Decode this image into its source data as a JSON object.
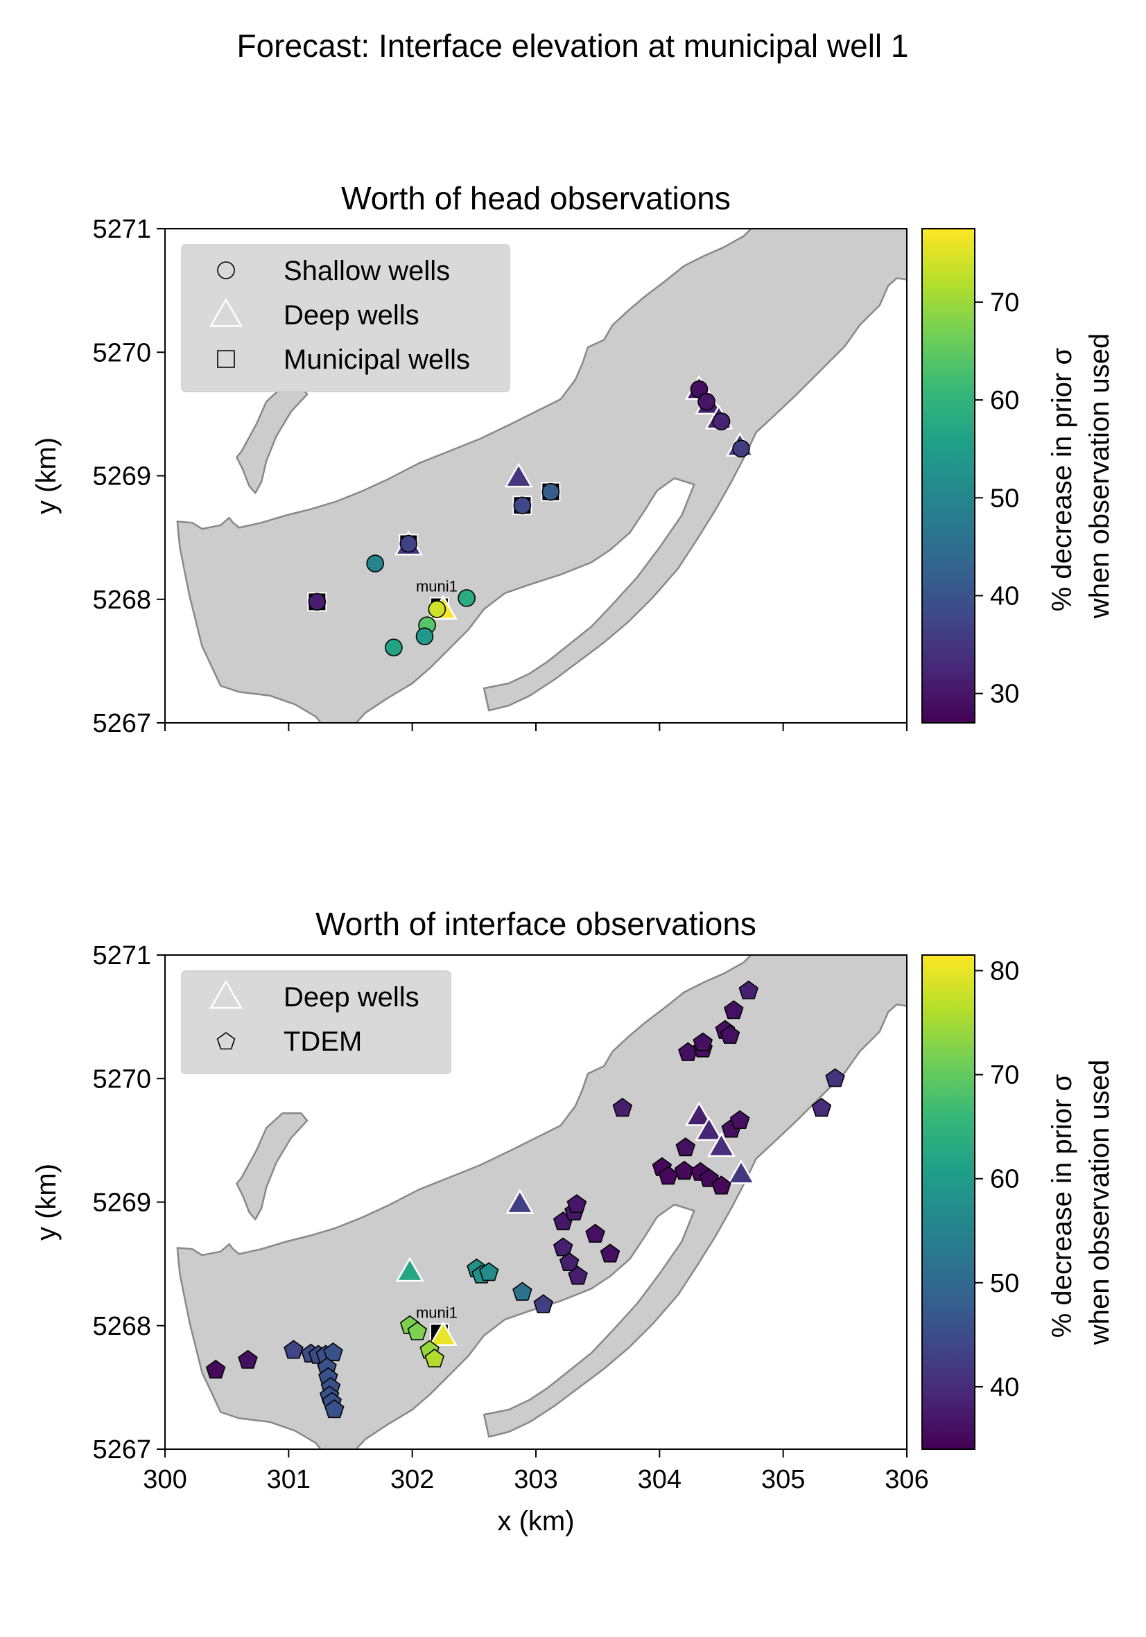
{
  "suptitle": "Forecast: Interface elevation at municipal well 1",
  "colors": {
    "island": "#cccccc",
    "coast": "#888888",
    "legend_bg": "#d9d9d9",
    "viridis": [
      "#440154",
      "#482878",
      "#3e4989",
      "#31688e",
      "#26828e",
      "#1f9e89",
      "#35b779",
      "#6ece58",
      "#b5de2b",
      "#fde725"
    ]
  },
  "chart_data": [
    {
      "type": "scatter",
      "title": "Worth of head observations",
      "xlabel": "",
      "ylabel": "y (km)",
      "xlim": [
        300,
        306
      ],
      "ylim": [
        5267,
        5271
      ],
      "xticks": [
        300,
        301,
        302,
        303,
        304,
        305,
        306
      ],
      "yticks": [
        5267,
        5268,
        5269,
        5270,
        5271
      ],
      "show_xticklabels": false,
      "colorbar": {
        "label_line1": "% decrease in prior σ",
        "label_line2": "when observation used",
        "range": [
          27,
          77.5
        ],
        "ticks": [
          30,
          40,
          50,
          60,
          70
        ]
      },
      "legend": {
        "position": "top-left",
        "entries": [
          {
            "marker": "circle",
            "label": "Shallow wells"
          },
          {
            "marker": "triangle",
            "label": "Deep wells"
          },
          {
            "marker": "square",
            "label": "Municipal wells"
          }
        ]
      },
      "annotation": {
        "text": "muni1",
        "x": 302.22,
        "y": 5267.94
      },
      "series": [
        {
          "marker": "square",
          "points": [
            {
              "x": 301.23,
              "y": 5267.98
            },
            {
              "x": 301.97,
              "y": 5268.45
            },
            {
              "x": 302.22,
              "y": 5267.94
            },
            {
              "x": 302.89,
              "y": 5268.76
            },
            {
              "x": 303.12,
              "y": 5268.87
            }
          ]
        },
        {
          "marker": "triangle",
          "points": [
            {
              "x": 301.97,
              "y": 5268.43,
              "v": 35
            },
            {
              "x": 302.86,
              "y": 5268.98,
              "v": 35
            },
            {
              "x": 302.25,
              "y": 5267.91,
              "v": 77
            },
            {
              "x": 304.32,
              "y": 5269.69,
              "v": 30
            },
            {
              "x": 304.4,
              "y": 5269.57,
              "v": 31
            },
            {
              "x": 304.48,
              "y": 5269.45,
              "v": 32
            },
            {
              "x": 304.65,
              "y": 5269.23,
              "v": 36
            }
          ]
        },
        {
          "marker": "circle",
          "points": [
            {
              "x": 301.23,
              "y": 5267.98,
              "v": 31
            },
            {
              "x": 301.7,
              "y": 5268.29,
              "v": 50
            },
            {
              "x": 301.97,
              "y": 5268.45,
              "v": 37
            },
            {
              "x": 302.2,
              "y": 5267.92,
              "v": 74
            },
            {
              "x": 302.44,
              "y": 5268.01,
              "v": 58
            },
            {
              "x": 302.12,
              "y": 5267.79,
              "v": 64
            },
            {
              "x": 302.1,
              "y": 5267.7,
              "v": 54
            },
            {
              "x": 301.85,
              "y": 5267.61,
              "v": 56
            },
            {
              "x": 302.89,
              "y": 5268.76,
              "v": 38
            },
            {
              "x": 303.12,
              "y": 5268.87,
              "v": 42
            },
            {
              "x": 304.32,
              "y": 5269.7,
              "v": 29
            },
            {
              "x": 304.38,
              "y": 5269.6,
              "v": 30
            },
            {
              "x": 304.5,
              "y": 5269.44,
              "v": 32
            },
            {
              "x": 304.66,
              "y": 5269.22,
              "v": 36
            }
          ]
        }
      ]
    },
    {
      "type": "scatter",
      "title": "Worth of interface observations",
      "xlabel": "x (km)",
      "ylabel": "y (km)",
      "xlim": [
        300,
        306
      ],
      "ylim": [
        5267,
        5271
      ],
      "xticks": [
        300,
        301,
        302,
        303,
        304,
        305,
        306
      ],
      "yticks": [
        5267,
        5268,
        5269,
        5270,
        5271
      ],
      "show_xticklabels": true,
      "colorbar": {
        "label_line1": "% decrease in prior σ",
        "label_line2": "when observation used",
        "range": [
          34,
          81.5
        ],
        "ticks": [
          40,
          50,
          60,
          70,
          80
        ]
      },
      "legend": {
        "position": "top-left",
        "entries": [
          {
            "marker": "triangle",
            "label": "Deep wells"
          },
          {
            "marker": "pentagon",
            "label": "TDEM"
          }
        ]
      },
      "annotation": {
        "text": "muni1",
        "x": 302.22,
        "y": 5267.94
      },
      "series": [
        {
          "marker": "square",
          "points": [
            {
              "x": 302.22,
              "y": 5267.94
            }
          ]
        },
        {
          "marker": "triangle",
          "points": [
            {
              "x": 301.98,
              "y": 5268.43,
              "v": 62
            },
            {
              "x": 302.87,
              "y": 5268.98,
              "v": 43
            },
            {
              "x": 302.25,
              "y": 5267.91,
              "v": 80
            },
            {
              "x": 304.32,
              "y": 5269.69,
              "v": 38
            },
            {
              "x": 304.4,
              "y": 5269.57,
              "v": 39
            },
            {
              "x": 304.5,
              "y": 5269.44,
              "v": 40
            },
            {
              "x": 304.66,
              "y": 5269.22,
              "v": 42
            }
          ]
        },
        {
          "marker": "pentagon",
          "points": [
            {
              "x": 300.41,
              "y": 5267.64,
              "v": 35
            },
            {
              "x": 300.67,
              "y": 5267.72,
              "v": 36
            },
            {
              "x": 301.04,
              "y": 5267.8,
              "v": 44
            },
            {
              "x": 301.18,
              "y": 5267.77,
              "v": 45
            },
            {
              "x": 301.24,
              "y": 5267.76,
              "v": 45
            },
            {
              "x": 301.3,
              "y": 5267.76,
              "v": 46
            },
            {
              "x": 301.36,
              "y": 5267.78,
              "v": 46
            },
            {
              "x": 301.31,
              "y": 5267.66,
              "v": 46
            },
            {
              "x": 301.32,
              "y": 5267.58,
              "v": 46
            },
            {
              "x": 301.34,
              "y": 5267.5,
              "v": 46
            },
            {
              "x": 301.33,
              "y": 5267.43,
              "v": 46
            },
            {
              "x": 301.35,
              "y": 5267.38,
              "v": 46
            },
            {
              "x": 301.37,
              "y": 5267.32,
              "v": 46
            },
            {
              "x": 301.98,
              "y": 5268.0,
              "v": 72
            },
            {
              "x": 302.04,
              "y": 5267.95,
              "v": 72
            },
            {
              "x": 302.14,
              "y": 5267.8,
              "v": 74
            },
            {
              "x": 302.18,
              "y": 5267.73,
              "v": 76
            },
            {
              "x": 302.52,
              "y": 5268.46,
              "v": 58
            },
            {
              "x": 302.56,
              "y": 5268.41,
              "v": 58
            },
            {
              "x": 302.62,
              "y": 5268.43,
              "v": 57
            },
            {
              "x": 302.89,
              "y": 5268.27,
              "v": 52
            },
            {
              "x": 303.06,
              "y": 5268.17,
              "v": 43
            },
            {
              "x": 303.22,
              "y": 5268.63,
              "v": 38
            },
            {
              "x": 303.27,
              "y": 5268.51,
              "v": 38
            },
            {
              "x": 303.34,
              "y": 5268.4,
              "v": 38
            },
            {
              "x": 303.22,
              "y": 5268.84,
              "v": 37
            },
            {
              "x": 303.31,
              "y": 5268.92,
              "v": 37
            },
            {
              "x": 303.33,
              "y": 5268.98,
              "v": 37
            },
            {
              "x": 303.48,
              "y": 5268.74,
              "v": 36
            },
            {
              "x": 303.6,
              "y": 5268.58,
              "v": 36
            },
            {
              "x": 303.7,
              "y": 5269.76,
              "v": 38
            },
            {
              "x": 304.02,
              "y": 5269.28,
              "v": 35
            },
            {
              "x": 304.07,
              "y": 5269.21,
              "v": 35
            },
            {
              "x": 304.2,
              "y": 5269.25,
              "v": 35
            },
            {
              "x": 304.21,
              "y": 5269.44,
              "v": 36
            },
            {
              "x": 304.33,
              "y": 5269.24,
              "v": 35
            },
            {
              "x": 304.4,
              "y": 5269.19,
              "v": 35
            },
            {
              "x": 304.5,
              "y": 5269.13,
              "v": 35
            },
            {
              "x": 304.23,
              "y": 5270.21,
              "v": 36
            },
            {
              "x": 304.35,
              "y": 5270.24,
              "v": 36
            },
            {
              "x": 304.35,
              "y": 5270.29,
              "v": 36
            },
            {
              "x": 304.53,
              "y": 5270.39,
              "v": 36
            },
            {
              "x": 304.57,
              "y": 5270.35,
              "v": 36
            },
            {
              "x": 304.6,
              "y": 5270.55,
              "v": 36
            },
            {
              "x": 304.72,
              "y": 5270.71,
              "v": 38
            },
            {
              "x": 304.58,
              "y": 5269.59,
              "v": 36
            },
            {
              "x": 304.65,
              "y": 5269.66,
              "v": 36
            },
            {
              "x": 305.31,
              "y": 5269.76,
              "v": 40
            },
            {
              "x": 305.42,
              "y": 5270.0,
              "v": 41
            }
          ]
        }
      ]
    }
  ]
}
